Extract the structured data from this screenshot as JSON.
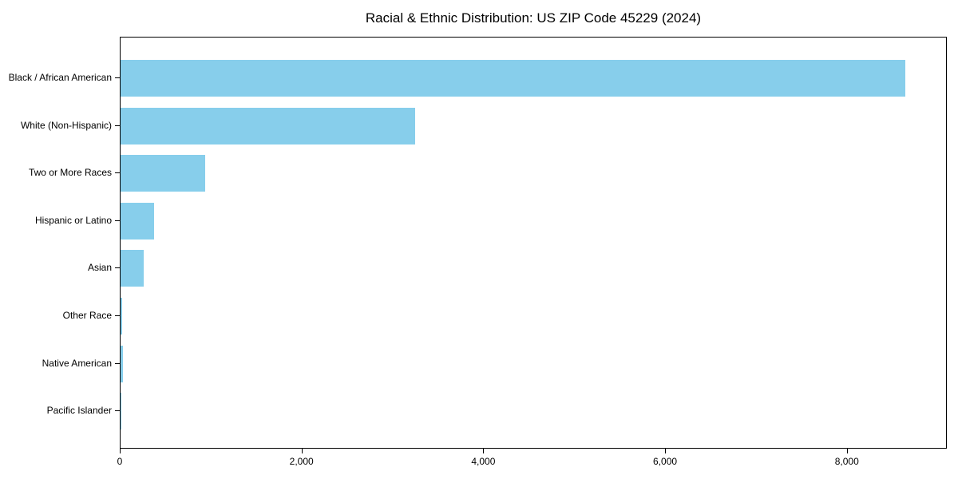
{
  "chart_data": {
    "type": "bar",
    "orientation": "horizontal",
    "title": "Racial & Ethnic Distribution: US ZIP Code 45229 (2024)",
    "categories": [
      "Black / African American",
      "White (Non-Hispanic)",
      "Two or More Races",
      "Hispanic or Latino",
      "Asian",
      "Other Race",
      "Native American",
      "Pacific Islander"
    ],
    "values": [
      8650,
      3250,
      930,
      370,
      255,
      20,
      23,
      3
    ],
    "bar_color": "#87CEEB",
    "background_color": "#ffffff",
    "spine_color": "#000000",
    "xlim": [
      0,
      9100
    ],
    "x_ticks": [
      0,
      2000,
      4000,
      6000,
      8000
    ],
    "x_tick_labels": [
      "0",
      "2,000",
      "4,000",
      "6,000",
      "8,000"
    ],
    "xlabel": "",
    "ylabel": "",
    "grid": false,
    "legend": null
  }
}
